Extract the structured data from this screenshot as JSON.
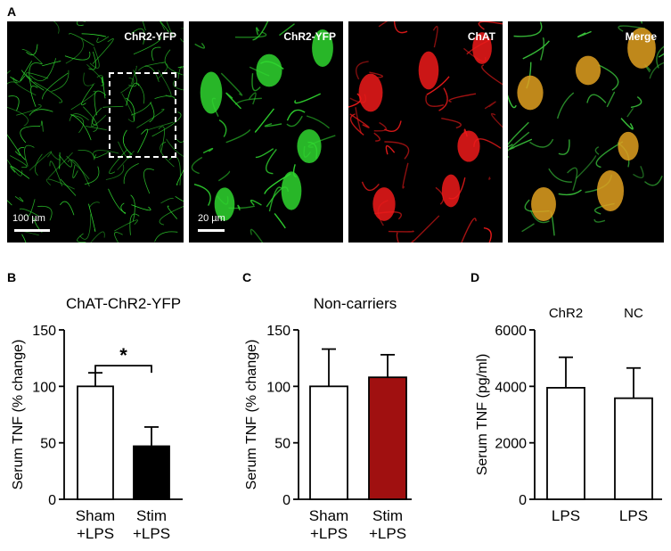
{
  "panels": {
    "a_letter": "A",
    "b_letter": "B",
    "c_letter": "C",
    "d_letter": "D"
  },
  "micrographs": [
    {
      "label": "ChR2-YFP",
      "color": "#2fd62f",
      "scalebar": "100 µm",
      "inset_box": true
    },
    {
      "label": "ChR2-YFP",
      "color": "#2fd62f",
      "scalebar": "20 µm",
      "inset_box": false
    },
    {
      "label": "ChAT",
      "color": "#ee1a1a",
      "scalebar": "",
      "inset_box": false
    },
    {
      "label": "Merge",
      "color": "#d89a1a",
      "scalebar": "",
      "inset_box": false
    }
  ],
  "chart_data": [
    {
      "type": "bar",
      "title": "ChAT-ChR2-YFP",
      "ylabel": "Serum TNF (% change)",
      "ylim": [
        0,
        150
      ],
      "yticks": [
        "0",
        "50",
        "100",
        "150"
      ],
      "categories": [
        [
          "Sham",
          "+LPS"
        ],
        [
          "Stim",
          "+LPS"
        ]
      ],
      "values": [
        100,
        47
      ],
      "errors": [
        12,
        17
      ],
      "fills": [
        "#ffffff",
        "#000000"
      ],
      "significance": "*"
    },
    {
      "type": "bar",
      "title": "Non-carriers",
      "ylabel": "Serum TNF (% change)",
      "ylim": [
        0,
        150
      ],
      "yticks": [
        "0",
        "50",
        "100",
        "150"
      ],
      "categories": [
        [
          "Sham",
          "+LPS"
        ],
        [
          "Stim",
          "+LPS"
        ]
      ],
      "values": [
        100,
        108
      ],
      "errors": [
        33,
        20
      ],
      "fills": [
        "#ffffff",
        "#a01010"
      ],
      "significance": ""
    },
    {
      "type": "bar",
      "title": "",
      "ylabel": "Serum TNF (pg/ml)",
      "ylim": [
        0,
        6000
      ],
      "yticks": [
        "0",
        "2000",
        "4000",
        "6000"
      ],
      "categories": [
        [
          "LPS"
        ],
        [
          "LPS"
        ]
      ],
      "bar_labels": [
        "ChR2",
        "NC"
      ],
      "values": [
        3950,
        3580
      ],
      "errors": [
        1080,
        1070
      ],
      "fills": [
        "#ffffff",
        "#ffffff"
      ],
      "significance": ""
    }
  ]
}
